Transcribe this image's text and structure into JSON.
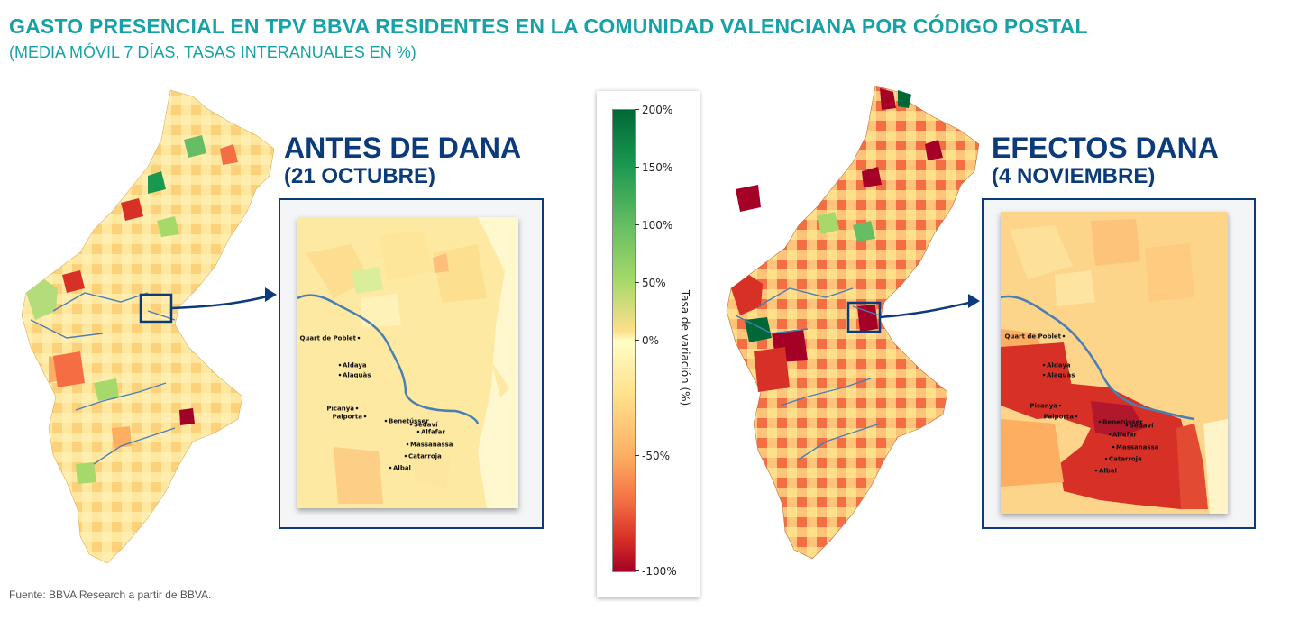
{
  "header": {
    "title": "GASTO PRESENCIAL EN TPV BBVA RESIDENTES EN LA COMUNIDAD VALENCIANA POR CÓDIGO POSTAL",
    "subtitle": "(MEDIA MÓVIL 7 DÍAS, TASAS INTERANUALES EN %)"
  },
  "panels": {
    "before": {
      "title": "ANTES DE DANA",
      "date": "(21 OCTUBRE)"
    },
    "after": {
      "title": "EFECTOS DANA",
      "date": "(4 NOVIEMBRE)"
    }
  },
  "towns": [
    "Quart de Poblet",
    "Aldaya",
    "Alaquàs",
    "Picanya",
    "Paiporta",
    "Benetússer",
    "Sedaví",
    "Alfafar",
    "Massanassa",
    "Catarroja",
    "Albal"
  ],
  "colorbar": {
    "label": "Tasa de variación (%)",
    "ticks": [
      "200%",
      "150%",
      "100%",
      "50%",
      "0%",
      "-50%",
      "-100%"
    ],
    "tick_values": [
      200,
      150,
      100,
      50,
      0,
      -50,
      -100
    ],
    "colors": {
      "high": "#006837",
      "mid": "#fffdc6",
      "low": "#a50026"
    }
  },
  "source": "Fuente: BBVA Research a partir de BBVA."
}
